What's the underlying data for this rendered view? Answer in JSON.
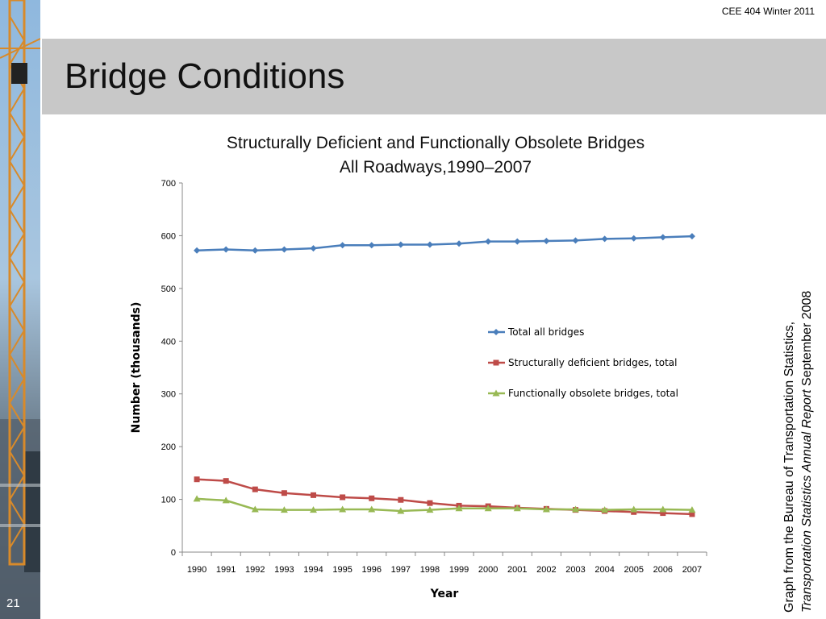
{
  "header": {
    "course": "CEE 404 Winter 2011"
  },
  "slide": {
    "title": "Bridge Conditions",
    "number": "21"
  },
  "source": {
    "line1": "Graph from the Bureau of Transportation Statistics,",
    "line2_italic": "Transportation Statistics Annual Report",
    "line2_rest": " September 2008"
  },
  "colors": {
    "title_bar": "#c8c8c8",
    "total": "#4a7ebb",
    "deficient": "#be4b48",
    "obsolete": "#98b954"
  },
  "chart_data": {
    "type": "line",
    "title": "Structurally Deficient and Functionally Obsolete Bridges",
    "subtitle": "All Roadways,1990–2007",
    "xlabel": "Year",
    "ylabel": "Number (thousands)",
    "ylim": [
      0,
      700
    ],
    "yticks": [
      0,
      100,
      200,
      300,
      400,
      500,
      600,
      700
    ],
    "grid": false,
    "legend_position": "center-right",
    "categories": [
      "1990",
      "1991",
      "1992",
      "1993",
      "1994",
      "1995",
      "1996",
      "1997",
      "1998",
      "1999",
      "2000",
      "2001",
      "2002",
      "2003",
      "2004",
      "2005",
      "2006",
      "2007"
    ],
    "series": [
      {
        "name": "Total all bridges",
        "marker": "diamond",
        "color": "#4a7ebb",
        "values": [
          572,
          574,
          572,
          574,
          576,
          582,
          582,
          583,
          583,
          585,
          589,
          589,
          590,
          591,
          594,
          595,
          597,
          599
        ]
      },
      {
        "name": "Structurally deficient bridges, total",
        "marker": "square",
        "color": "#be4b48",
        "values": [
          138,
          135,
          119,
          112,
          108,
          104,
          102,
          99,
          93,
          88,
          87,
          84,
          82,
          80,
          78,
          76,
          74,
          72
        ]
      },
      {
        "name": "Functionally obsolete bridges, total",
        "marker": "triangle",
        "color": "#98b954",
        "values": [
          101,
          98,
          81,
          80,
          80,
          81,
          81,
          78,
          80,
          83,
          83,
          83,
          81,
          81,
          80,
          81,
          81,
          80
        ]
      }
    ]
  }
}
